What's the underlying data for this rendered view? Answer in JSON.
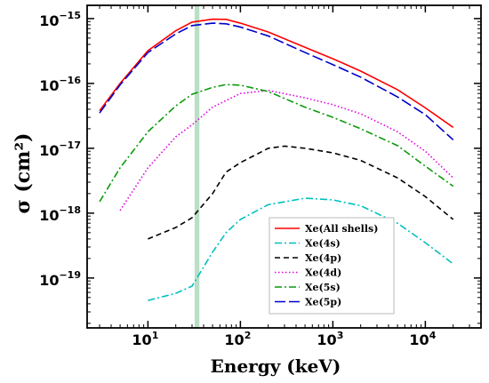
{
  "chart_data": {
    "type": "line",
    "xlabel": "Energy (keV)",
    "ylabel": "σ (cm²)",
    "xscale": "log",
    "yscale": "log",
    "xlim": [
      2.2,
      40000
    ],
    "ylim": [
      1.7e-20,
      1.6e-15
    ],
    "x_ticks": [
      {
        "value": 10,
        "mantissa": "10",
        "exp": "1"
      },
      {
        "value": 100,
        "mantissa": "10",
        "exp": "2"
      },
      {
        "value": 1000,
        "mantissa": "10",
        "exp": "3"
      },
      {
        "value": 10000,
        "mantissa": "10",
        "exp": "4"
      }
    ],
    "y_ticks": [
      {
        "value": 1e-19,
        "mantissa": "10",
        "exp": "−19"
      },
      {
        "value": 1e-18,
        "mantissa": "10",
        "exp": "−18"
      },
      {
        "value": 1e-17,
        "mantissa": "10",
        "exp": "−17"
      },
      {
        "value": 1e-16,
        "mantissa": "10",
        "exp": "−16"
      },
      {
        "value": 1e-15,
        "mantissa": "10",
        "exp": "−15"
      }
    ],
    "highlight_band": {
      "x_range": [
        32,
        36
      ],
      "color": "#b9dfc4"
    },
    "legend_position": "lower-right-center",
    "series": [
      {
        "name": "Xe(All shells)",
        "color": "#ff0000",
        "dash": "solid",
        "x": [
          3,
          5,
          10,
          20,
          30,
          50,
          70,
          100,
          200,
          500,
          1000,
          2000,
          5000,
          10000,
          20000
        ],
        "y": [
          3.8e-17,
          1e-16,
          3.2e-16,
          6.5e-16,
          8.8e-16,
          9.8e-16,
          9.7e-16,
          8.5e-16,
          6.2e-16,
          3.6e-16,
          2.4e-16,
          1.55e-16,
          8e-17,
          4.2e-17,
          2.1e-17
        ]
      },
      {
        "name": "Xe(4s)",
        "color": "#00c0c0",
        "dash": "dashdot",
        "x": [
          10,
          20,
          30,
          50,
          70,
          100,
          200,
          500,
          1000,
          2000,
          5000,
          10000,
          20000
        ],
        "y": [
          4.5e-20,
          5.8e-20,
          7.5e-20,
          2.5e-19,
          5e-19,
          8e-19,
          1.35e-18,
          1.7e-18,
          1.6e-18,
          1.3e-18,
          7e-19,
          3.5e-19,
          1.65e-19
        ]
      },
      {
        "name": "Xe(4p)",
        "color": "#000000",
        "dash": "dashed",
        "x": [
          10,
          20,
          30,
          50,
          70,
          100,
          200,
          300,
          500,
          1000,
          2000,
          5000,
          10000,
          20000
        ],
        "y": [
          4e-19,
          6e-19,
          8.5e-19,
          2e-18,
          4.3e-18,
          6e-18,
          1e-17,
          1.08e-17,
          1e-17,
          8.5e-18,
          6.5e-18,
          3.5e-18,
          1.8e-18,
          8e-19
        ]
      },
      {
        "name": "Xe(4d)",
        "color": "#e000e0",
        "dash": "dotted",
        "x": [
          5,
          10,
          20,
          30,
          50,
          100,
          200,
          500,
          1000,
          2000,
          5000,
          10000,
          20000
        ],
        "y": [
          1.1e-18,
          5e-18,
          1.5e-17,
          2.3e-17,
          4.3e-17,
          7e-17,
          7.8e-17,
          6e-17,
          4.7e-17,
          3.4e-17,
          1.8e-17,
          9e-18,
          3.5e-18
        ]
      },
      {
        "name": "Xe(5s)",
        "color": "#0a9a0a",
        "dash": "dashdot",
        "x": [
          3,
          5,
          10,
          20,
          30,
          50,
          70,
          100,
          200,
          500,
          1000,
          2000,
          5000,
          10000,
          20000
        ],
        "y": [
          1.5e-18,
          5e-18,
          1.8e-17,
          4.5e-17,
          6.8e-17,
          8.7e-17,
          9.6e-17,
          9.4e-17,
          7.5e-17,
          4.3e-17,
          3e-17,
          2e-17,
          1.1e-17,
          5.3e-18,
          2.6e-18
        ]
      },
      {
        "name": "Xe(5p)",
        "color": "#0000cc",
        "dash": "longdash",
        "x": [
          3,
          5,
          10,
          20,
          30,
          50,
          70,
          100,
          200,
          500,
          1000,
          2000,
          5000,
          10000,
          20000
        ],
        "y": [
          3.5e-17,
          9.5e-17,
          3e-16,
          5.8e-16,
          7.8e-16,
          8.5e-16,
          8.3e-16,
          7.4e-16,
          5.4e-16,
          3e-16,
          1.95e-16,
          1.25e-16,
          6.2e-17,
          3.3e-17,
          1.35e-17
        ]
      }
    ]
  }
}
